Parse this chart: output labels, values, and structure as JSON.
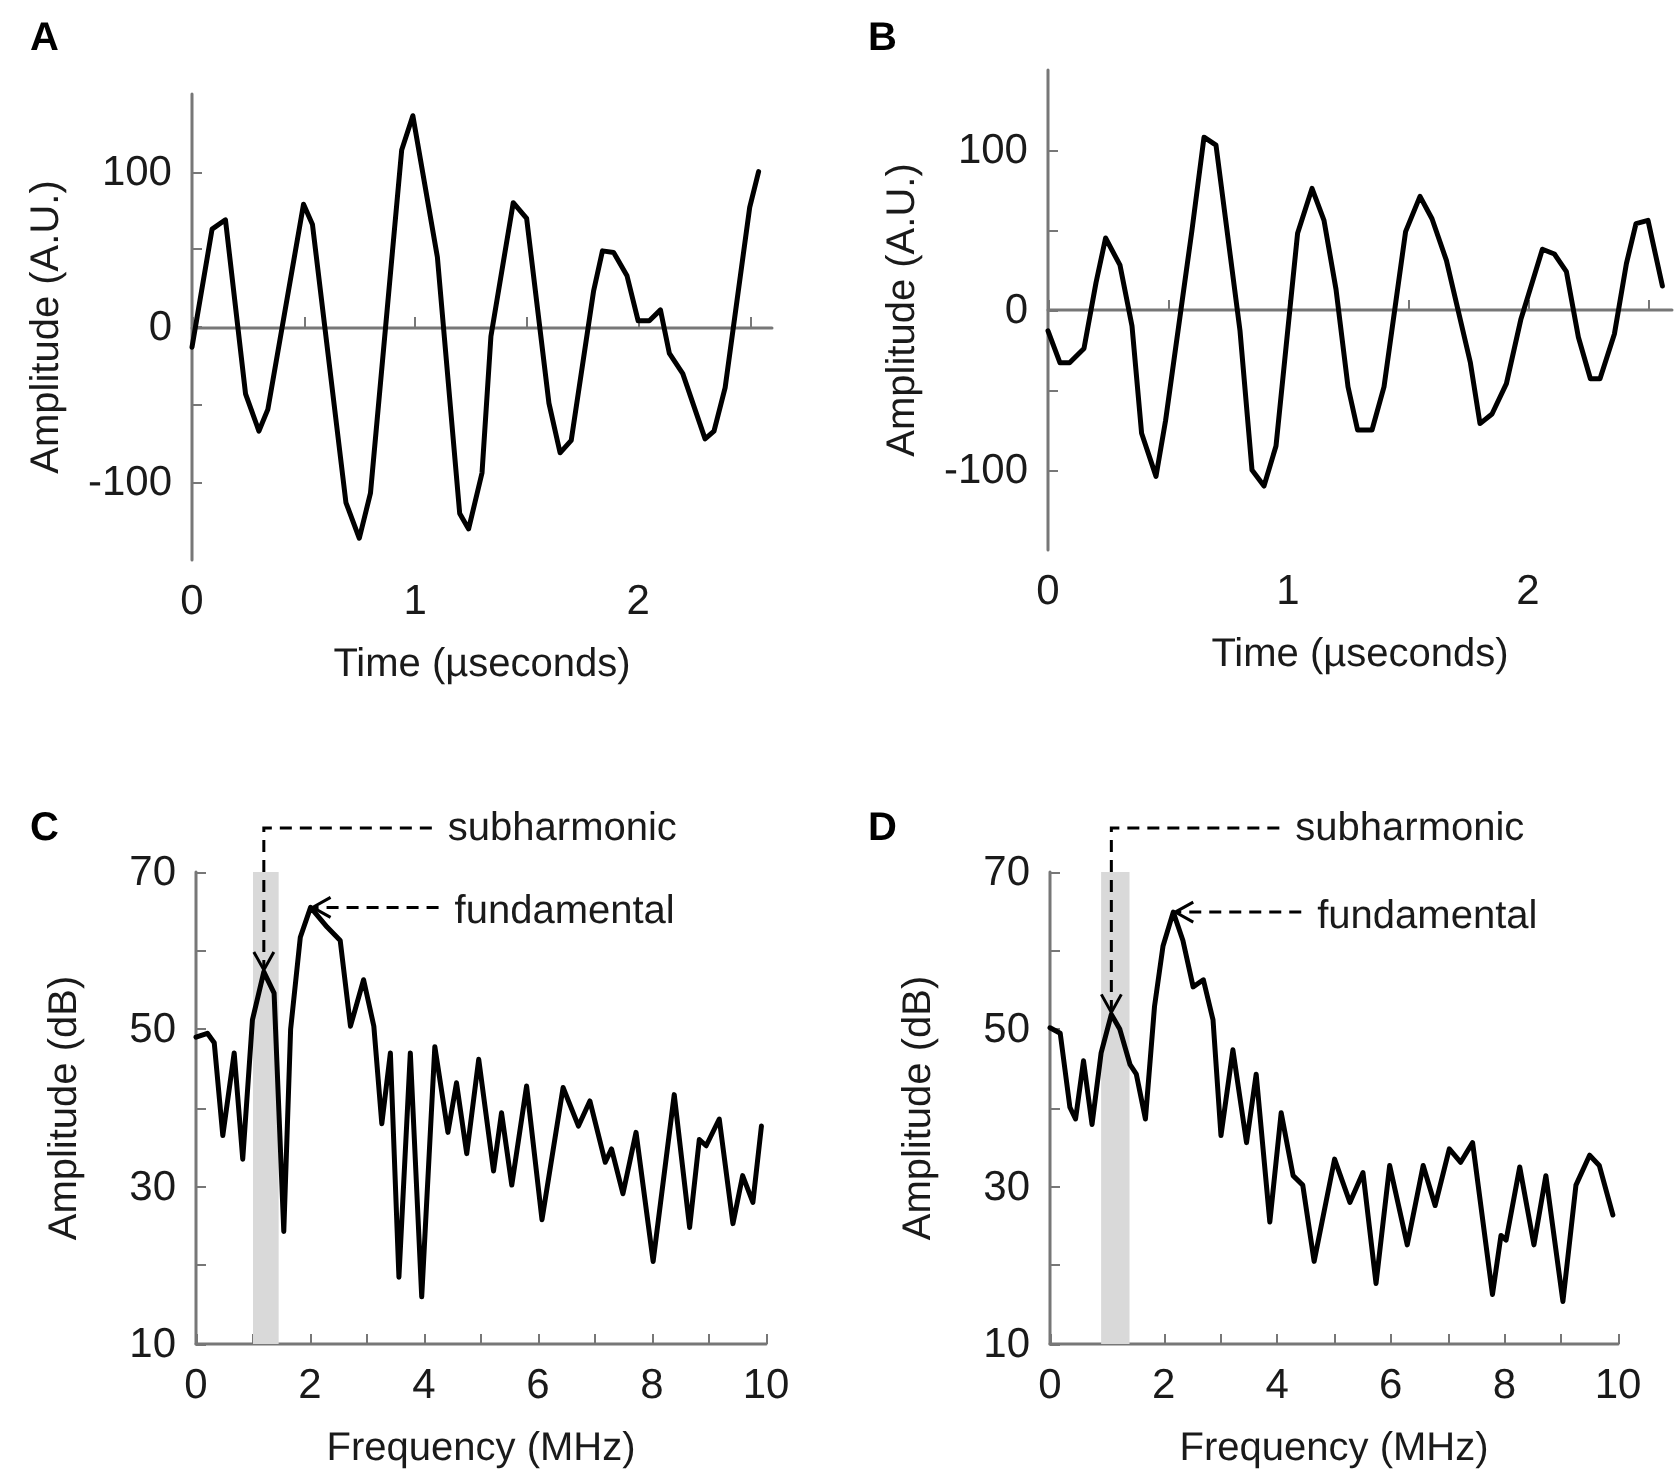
{
  "chart_data": [
    {
      "type": "line",
      "title": "A",
      "xlabel": "Time (µseconds)",
      "ylabel": "Amplitude (A.U.)",
      "marker": "none",
      "xlim": [
        0,
        2.6
      ],
      "ylim": [
        -150,
        150
      ],
      "xticks": [
        0,
        {
          "value": 0.5,
          "label": null
        },
        1,
        {
          "value": 1.5,
          "label": null
        },
        2,
        {
          "value": 2.5,
          "label": null
        }
      ],
      "yticks": [
        -100,
        {
          "value": -50,
          "label": null
        },
        0,
        {
          "value": 50,
          "label": null
        },
        100
      ],
      "x": [
        0,
        0.09,
        0.15,
        0.24,
        0.3,
        0.34,
        0.5,
        0.54,
        0.69,
        0.75,
        0.8,
        0.94,
        0.99,
        1.1,
        1.2,
        1.24,
        1.3,
        1.34,
        1.44,
        1.5,
        1.6,
        1.65,
        1.7,
        1.8,
        1.84,
        1.89,
        1.95,
        2.0,
        2.05,
        2.1,
        2.14,
        2.2,
        2.3,
        2.34,
        2.39,
        2.5,
        2.54
      ],
      "series": [
        {
          "color": "#000000",
          "values": [
            -13,
            63,
            69,
            -43,
            -67,
            -53,
            79,
            66,
            -113,
            -136,
            -107,
            114,
            136,
            45,
            -120,
            -130,
            -94,
            -6,
            80,
            70,
            -49,
            -81,
            -73,
            23,
            49,
            48,
            33,
            4,
            4,
            11,
            -17,
            -30,
            -72,
            -67,
            -39,
            77,
            100
          ]
        }
      ]
    },
    {
      "type": "line",
      "title": "B",
      "xlabel": "Time (µseconds)",
      "ylabel": "Amplitude (A.U.)",
      "marker": "none",
      "xlim": [
        0,
        2.6
      ],
      "ylim": [
        -150,
        150
      ],
      "xticks": [
        0,
        {
          "value": 0.5,
          "label": null
        },
        1,
        {
          "value": 1.5,
          "label": null
        },
        2,
        {
          "value": 2.5,
          "label": null
        }
      ],
      "yticks": [
        -100,
        {
          "value": -50,
          "label": null
        },
        0,
        {
          "value": 50,
          "label": null
        },
        100
      ],
      "x": [
        0,
        0.05,
        0.09,
        0.15,
        0.2,
        0.24,
        0.3,
        0.35,
        0.39,
        0.45,
        0.49,
        0.6,
        0.65,
        0.7,
        0.8,
        0.85,
        0.9,
        0.95,
        1.04,
        1.1,
        1.15,
        1.2,
        1.25,
        1.29,
        1.35,
        1.4,
        1.49,
        1.55,
        1.6,
        1.66,
        1.76,
        1.8,
        1.85,
        1.91,
        1.97,
        2.06,
        2.11,
        2.16,
        2.21,
        2.26,
        2.3,
        2.36,
        2.41,
        2.45,
        2.5,
        2.56
      ],
      "series": [
        {
          "color": "#000000",
          "values": [
            -13,
            -33,
            -33,
            -24,
            17,
            45,
            28,
            -10,
            -77,
            -104,
            -69,
            50,
            108,
            103,
            -13,
            -100,
            -110,
            -85,
            48,
            76,
            56,
            13,
            -48,
            -75,
            -75,
            -48,
            49,
            71,
            57,
            31,
            -33,
            -71,
            -65,
            -46,
            -6,
            38,
            35,
            24,
            -17,
            -43,
            -43,
            -15,
            29,
            54,
            56,
            15
          ]
        }
      ]
    },
    {
      "type": "line",
      "title": "C",
      "xlabel": "Frequency (MHz)",
      "ylabel": "Amplitude (dB)",
      "marker": "none",
      "xlim": [
        0,
        10
      ],
      "ylim": [
        10,
        70
      ],
      "xticks": [
        0,
        {
          "value": 1,
          "label": null
        },
        2,
        {
          "value": 3,
          "label": null
        },
        4,
        {
          "value": 5,
          "label": null
        },
        6,
        {
          "value": 7,
          "label": null
        },
        8,
        {
          "value": 9,
          "label": null
        },
        10
      ],
      "yticks": [
        10,
        {
          "value": 20,
          "label": null
        },
        30,
        {
          "value": 40,
          "label": null
        },
        50,
        {
          "value": 60,
          "label": null
        },
        70
      ],
      "bands": [
        {
          "axis": "x",
          "from": 1.0,
          "to": 1.45,
          "color": "#d9d9d9"
        }
      ],
      "annotations": [
        {
          "text": "subharmonic",
          "x": 1.19,
          "y": 57.3
        },
        "fundamental"
      ],
      "x": [
        0,
        0.2,
        0.32,
        0.47,
        0.67,
        0.82,
        0.99,
        1.19,
        1.37,
        1.54,
        1.66,
        1.83,
        2.01,
        2.3,
        2.53,
        2.71,
        2.94,
        3.12,
        3.26,
        3.41,
        3.56,
        3.76,
        3.96,
        4.19,
        4.42,
        4.57,
        4.75,
        4.96,
        5.22,
        5.36,
        5.54,
        5.8,
        6.07,
        6.44,
        6.71,
        6.91,
        7.18,
        7.29,
        7.49,
        7.72,
        8.02,
        8.39,
        8.66,
        8.83,
        8.95,
        9.18,
        9.42,
        9.59,
        9.77,
        9.92
      ],
      "series": [
        {
          "color": "#000000",
          "values": [
            49,
            49.5,
            48.3,
            36.5,
            47,
            33.5,
            51.2,
            57.3,
            54.6,
            24.3,
            50,
            61.7,
            65.5,
            63,
            61.3,
            50.4,
            56.3,
            50.4,
            38,
            47,
            18.5,
            47,
            16,
            47.8,
            36.9,
            43.2,
            34.2,
            46.2,
            32,
            39.4,
            30.2,
            42.8,
            25.8,
            42.6,
            37.7,
            40.9,
            33.1,
            34.8,
            29.1,
            36.9,
            20.5,
            41.7,
            24.8,
            36,
            35.2,
            38.6,
            25.3,
            31.4,
            28,
            37.7
          ]
        }
      ]
    },
    {
      "type": "line",
      "title": "D",
      "xlabel": "Frequency (MHz)",
      "ylabel": "Amplitude (dB)",
      "marker": "none",
      "xlim": [
        0,
        10
      ],
      "ylim": [
        10,
        70
      ],
      "xticks": [
        0,
        {
          "value": 1,
          "label": null
        },
        2,
        {
          "value": 3,
          "label": null
        },
        4,
        {
          "value": 5,
          "label": null
        },
        6,
        {
          "value": 7,
          "label": null
        },
        8,
        {
          "value": 9,
          "label": null
        },
        10
      ],
      "yticks": [
        10,
        {
          "value": 20,
          "label": null
        },
        30,
        {
          "value": 40,
          "label": null
        },
        50,
        {
          "value": 60,
          "label": null
        },
        70
      ],
      "bands": [
        {
          "axis": "x",
          "from": 0.9,
          "to": 1.4,
          "color": "#d9d9d9"
        }
      ],
      "annotations": [
        {
          "text": "subharmonic",
          "x": 1.08,
          "y": 51.9
        },
        "fundamental"
      ],
      "x": [
        0,
        0.18,
        0.35,
        0.45,
        0.59,
        0.74,
        0.9,
        1.08,
        1.23,
        1.41,
        1.52,
        1.68,
        1.84,
        1.99,
        2.17,
        2.34,
        2.52,
        2.7,
        2.87,
        3.01,
        3.22,
        3.46,
        3.63,
        3.87,
        4.07,
        4.28,
        4.45,
        4.65,
        5.01,
        5.28,
        5.51,
        5.74,
        5.98,
        6.29,
        6.57,
        6.78,
        7.03,
        7.23,
        7.44,
        7.79,
        7.94,
        8.03,
        8.27,
        8.52,
        8.73,
        9.03,
        9.26,
        9.5,
        9.67,
        9.91
      ],
      "series": [
        {
          "color": "#000000",
          "values": [
            50.2,
            49.5,
            40.1,
            38.6,
            46,
            37.9,
            47,
            51.9,
            50,
            45.5,
            44.3,
            38.6,
            52.9,
            60.6,
            64.9,
            61.3,
            55.4,
            56.3,
            51.2,
            36.5,
            47.4,
            35.6,
            44.3,
            25.5,
            39.4,
            31.4,
            30.2,
            20.5,
            33.5,
            28,
            31.8,
            17.7,
            32.7,
            22.6,
            32.7,
            27.6,
            34.8,
            33.1,
            35.6,
            16.3,
            23.8,
            23.2,
            32.5,
            22.6,
            31.4,
            15.4,
            30.2,
            34,
            32.7,
            26.4
          ]
        }
      ]
    }
  ]
}
